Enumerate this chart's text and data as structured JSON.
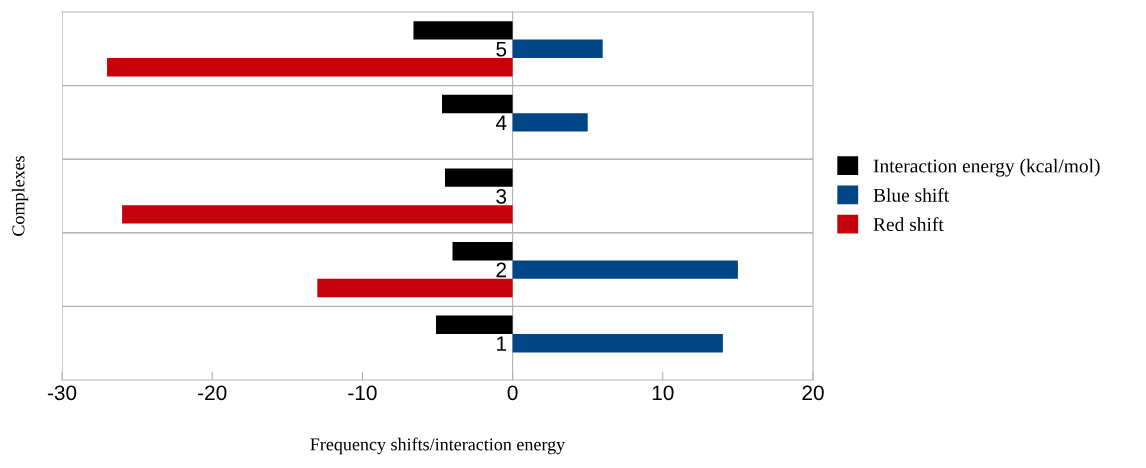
{
  "chart_data": {
    "type": "bar",
    "orientation": "horizontal",
    "categories": [
      "5",
      "4",
      "3",
      "2",
      "1"
    ],
    "series": [
      {
        "name": "Interaction energy (kcal/mol)",
        "color": "#000000",
        "values": [
          -6.6,
          -4.7,
          -4.5,
          -4.0,
          -5.1
        ]
      },
      {
        "name": "Blue shift",
        "color": "#004586",
        "values": [
          6,
          5,
          null,
          15,
          14
        ]
      },
      {
        "name": "Red shift",
        "color": "#c5000b",
        "values": [
          -27,
          null,
          -26,
          -13,
          null
        ]
      }
    ],
    "xlim": [
      -30,
      20
    ],
    "xticks": [
      -30,
      -20,
      -10,
      0,
      10,
      20
    ],
    "xlabel": "Frequency shifts/interaction energy",
    "ylabel": "Complexes",
    "grid": "y",
    "legend": "right"
  }
}
